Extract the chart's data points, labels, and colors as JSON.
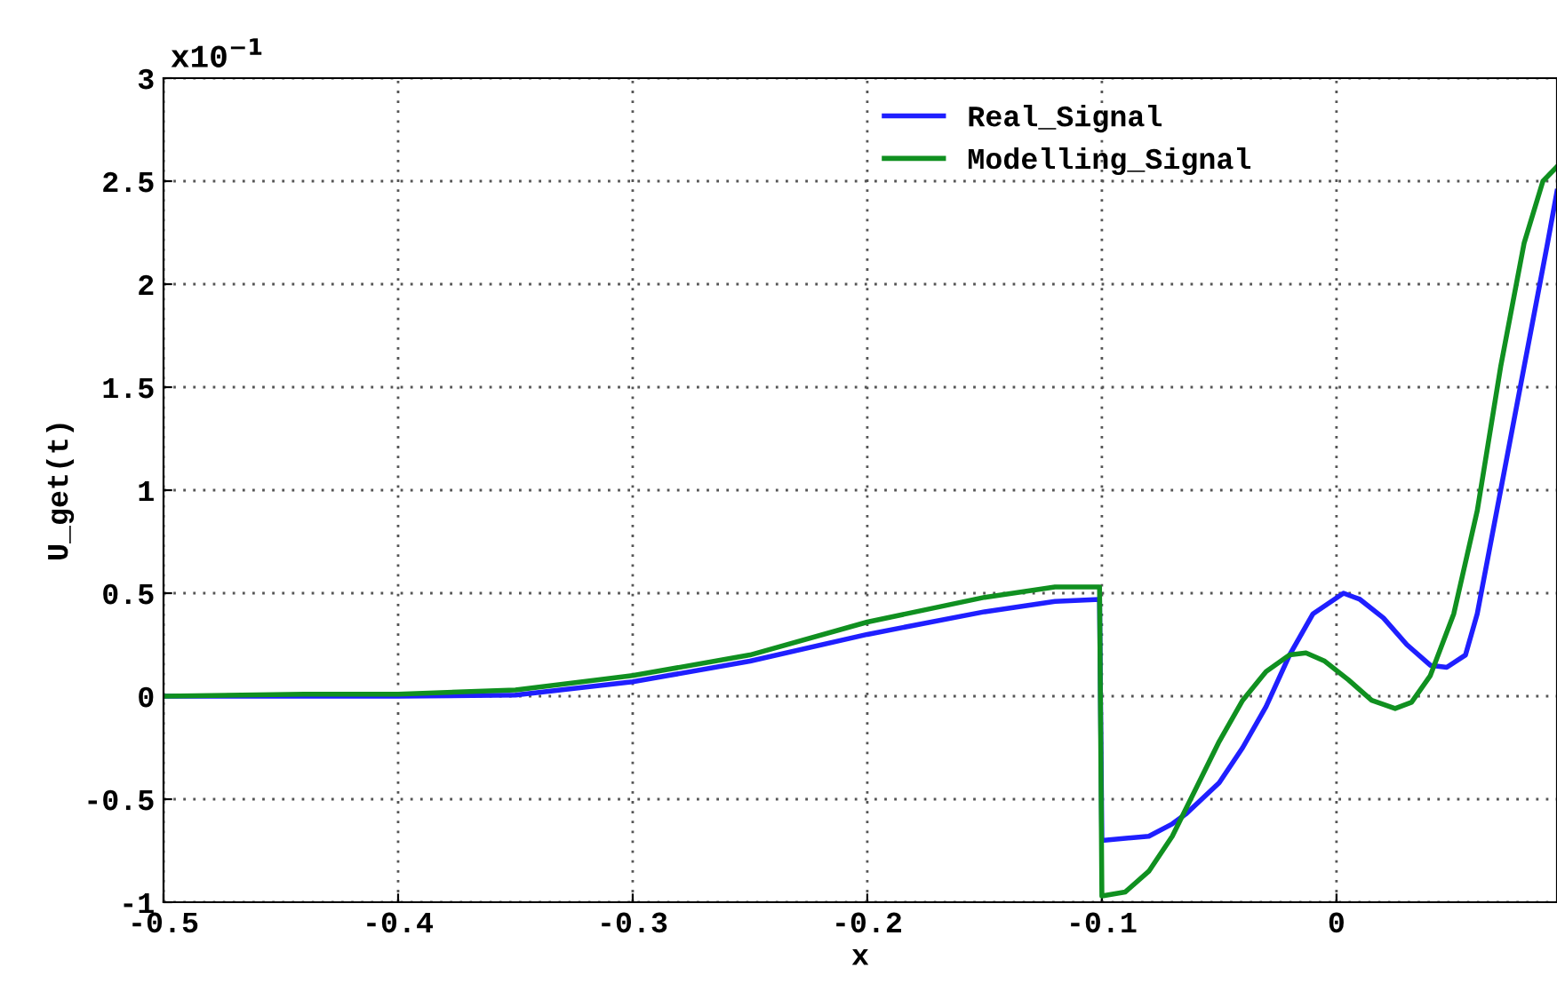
{
  "chart_data": {
    "type": "line",
    "xlabel": "x",
    "ylabel": "U_get(t)",
    "annotations": [
      "x10$^{−1}$"
    ],
    "xlim": [
      -0.5,
      0.094
    ],
    "xticks": [
      {
        "value": -0.5,
        "label": "-0.5"
      },
      {
        "value": -0.4,
        "label": "-0.4"
      },
      {
        "value": -0.3,
        "label": "-0.3"
      },
      {
        "value": -0.2,
        "label": "-0.2"
      },
      {
        "value": -0.1,
        "label": "-0.1"
      },
      0
    ],
    "ylim": [
      -1,
      3
    ],
    "yticks": [
      {
        "value": -1,
        "label": "-1"
      },
      {
        "value": -0.5,
        "label": "-0.5"
      },
      0,
      0.5,
      1,
      1.5,
      2,
      2.5,
      3
    ],
    "grid": true,
    "legend": "top right",
    "line_style": "solid",
    "series": [
      {
        "name": "Real_Signal",
        "color": "#1f1fff",
        "x": [
          -0.5,
          -0.4,
          -0.35,
          -0.3,
          -0.25,
          -0.2,
          -0.15,
          -0.12,
          -0.101,
          -0.1,
          -0.08,
          -0.07,
          -0.064,
          -0.05,
          -0.04,
          -0.03,
          -0.02,
          -0.01,
          0.003,
          0.01,
          0.02,
          0.03,
          0.04,
          0.047,
          0.055,
          0.06,
          0.07,
          0.08,
          0.09,
          0.094
        ],
        "values": [
          0,
          0,
          0.005,
          0.07,
          0.17,
          0.3,
          0.41,
          0.46,
          0.47,
          -0.7,
          -0.68,
          -0.62,
          -0.57,
          -0.42,
          -0.25,
          -0.05,
          0.2,
          0.4,
          0.5,
          0.47,
          0.38,
          0.25,
          0.15,
          0.14,
          0.2,
          0.4,
          1.0,
          1.6,
          2.2,
          2.45
        ]
      },
      {
        "name": "Modelling_Signal",
        "color": "#109020",
        "x": [
          -0.5,
          -0.44,
          -0.4,
          -0.35,
          -0.3,
          -0.25,
          -0.2,
          -0.15,
          -0.12,
          -0.101,
          -0.1,
          -0.09,
          -0.08,
          -0.07,
          -0.06,
          -0.05,
          -0.04,
          -0.03,
          -0.02,
          -0.013,
          -0.005,
          0.005,
          0.015,
          0.025,
          0.032,
          0.04,
          0.05,
          0.06,
          0.07,
          0.08,
          0.088,
          0.094
        ],
        "values": [
          0,
          0.01,
          0.01,
          0.03,
          0.1,
          0.2,
          0.36,
          0.48,
          0.53,
          0.53,
          -0.97,
          -0.95,
          -0.85,
          -0.68,
          -0.45,
          -0.22,
          -0.02,
          0.12,
          0.2,
          0.21,
          0.17,
          0.08,
          -0.02,
          -0.06,
          -0.03,
          0.1,
          0.4,
          0.9,
          1.6,
          2.2,
          2.5,
          2.57
        ]
      }
    ]
  }
}
